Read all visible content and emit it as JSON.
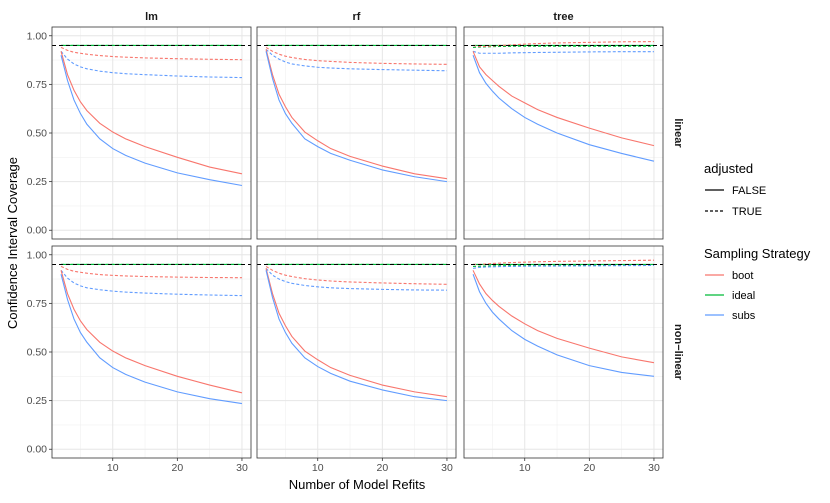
{
  "chart_data": {
    "type": "line",
    "xlabel": "Number of Model Refits",
    "ylabel": "Confidence Interval Coverage",
    "xlim": [
      2,
      30
    ],
    "ylim": [
      0,
      1
    ],
    "x_ticks": [
      10,
      20,
      30
    ],
    "y_ticks": [
      0.0,
      0.25,
      0.5,
      0.75,
      1.0
    ],
    "x_tick_labels": [
      "10",
      "20",
      "30"
    ],
    "y_tick_labels": [
      "0.00",
      "0.25",
      "0.50",
      "0.75",
      "1.00"
    ],
    "reference_line": 0.95,
    "grid": true,
    "legend_position": "right",
    "x": [
      2,
      3,
      4,
      5,
      6,
      8,
      10,
      12,
      15,
      20,
      25,
      30
    ],
    "col_facets": [
      "lm",
      "rf",
      "tree"
    ],
    "row_facets": [
      "linear",
      "non−linear"
    ],
    "legends": {
      "adjusted": {
        "title": "adjusted",
        "entries": [
          {
            "label": "FALSE",
            "linetype": "solid"
          },
          {
            "label": "TRUE",
            "linetype": "dashed"
          }
        ]
      },
      "strategy": {
        "title": "Sampling Strategy",
        "entries": [
          {
            "label": "boot",
            "color": "#F8766D"
          },
          {
            "label": "ideal",
            "color": "#00BA38"
          },
          {
            "label": "subs",
            "color": "#619CFF"
          }
        ]
      }
    },
    "panels": [
      {
        "row": "linear",
        "col": "lm",
        "series": [
          {
            "strategy": "ideal",
            "adjusted": "FALSE",
            "values": [
              0.95,
              0.95,
              0.95,
              0.95,
              0.95,
              0.95,
              0.95,
              0.95,
              0.95,
              0.95,
              0.95,
              0.95
            ]
          },
          {
            "strategy": "ideal",
            "adjusted": "TRUE",
            "values": [
              0.95,
              0.95,
              0.95,
              0.95,
              0.95,
              0.95,
              0.95,
              0.95,
              0.95,
              0.95,
              0.95,
              0.95
            ]
          },
          {
            "strategy": "boot",
            "adjusted": "TRUE",
            "values": [
              0.94,
              0.925,
              0.915,
              0.91,
              0.905,
              0.898,
              0.893,
              0.89,
              0.886,
              0.882,
              0.879,
              0.877
            ]
          },
          {
            "strategy": "subs",
            "adjusted": "TRUE",
            "values": [
              0.92,
              0.88,
              0.855,
              0.84,
              0.83,
              0.818,
              0.81,
              0.805,
              0.8,
              0.793,
              0.788,
              0.785
            ]
          },
          {
            "strategy": "boot",
            "adjusted": "FALSE",
            "values": [
              0.92,
              0.8,
              0.72,
              0.66,
              0.615,
              0.55,
              0.505,
              0.47,
              0.43,
              0.375,
              0.325,
              0.29
            ]
          },
          {
            "strategy": "subs",
            "adjusted": "FALSE",
            "values": [
              0.9,
              0.77,
              0.67,
              0.6,
              0.545,
              0.47,
              0.42,
              0.385,
              0.345,
              0.295,
              0.26,
              0.23
            ]
          }
        ]
      },
      {
        "row": "linear",
        "col": "rf",
        "series": [
          {
            "strategy": "ideal",
            "adjusted": "FALSE",
            "values": [
              0.95,
              0.95,
              0.95,
              0.95,
              0.95,
              0.95,
              0.95,
              0.95,
              0.95,
              0.95,
              0.95,
              0.95
            ]
          },
          {
            "strategy": "ideal",
            "adjusted": "TRUE",
            "values": [
              0.95,
              0.95,
              0.95,
              0.95,
              0.95,
              0.95,
              0.95,
              0.95,
              0.95,
              0.95,
              0.95,
              0.95
            ]
          },
          {
            "strategy": "boot",
            "adjusted": "TRUE",
            "values": [
              0.94,
              0.92,
              0.905,
              0.895,
              0.888,
              0.878,
              0.872,
              0.868,
              0.863,
              0.858,
              0.855,
              0.853
            ]
          },
          {
            "strategy": "subs",
            "adjusted": "TRUE",
            "values": [
              0.93,
              0.9,
              0.88,
              0.865,
              0.855,
              0.845,
              0.838,
              0.834,
              0.83,
              0.826,
              0.823,
              0.82
            ]
          },
          {
            "strategy": "boot",
            "adjusted": "FALSE",
            "values": [
              0.93,
              0.8,
              0.7,
              0.635,
              0.58,
              0.505,
              0.46,
              0.42,
              0.38,
              0.33,
              0.29,
              0.265
            ]
          },
          {
            "strategy": "subs",
            "adjusted": "FALSE",
            "values": [
              0.92,
              0.78,
              0.67,
              0.6,
              0.55,
              0.47,
              0.43,
              0.395,
              0.36,
              0.31,
              0.275,
              0.25
            ]
          }
        ]
      },
      {
        "row": "linear",
        "col": "tree",
        "series": [
          {
            "strategy": "ideal",
            "adjusted": "FALSE",
            "values": [
              0.95,
              0.95,
              0.95,
              0.95,
              0.95,
              0.95,
              0.95,
              0.95,
              0.95,
              0.95,
              0.95,
              0.95
            ]
          },
          {
            "strategy": "ideal",
            "adjusted": "TRUE",
            "values": [
              0.94,
              0.942,
              0.943,
              0.944,
              0.945,
              0.946,
              0.946,
              0.946,
              0.946,
              0.946,
              0.946,
              0.946
            ]
          },
          {
            "strategy": "boot",
            "adjusted": "TRUE",
            "values": [
              0.95,
              0.945,
              0.945,
              0.947,
              0.95,
              0.953,
              0.957,
              0.96,
              0.963,
              0.966,
              0.969,
              0.97
            ]
          },
          {
            "strategy": "subs",
            "adjusted": "TRUE",
            "values": [
              0.92,
              0.91,
              0.91,
              0.91,
              0.91,
              0.912,
              0.913,
              0.914,
              0.915,
              0.917,
              0.918,
              0.918
            ]
          },
          {
            "strategy": "boot",
            "adjusted": "FALSE",
            "values": [
              0.92,
              0.84,
              0.8,
              0.77,
              0.74,
              0.69,
              0.655,
              0.62,
              0.58,
              0.525,
              0.475,
              0.435
            ]
          },
          {
            "strategy": "subs",
            "adjusted": "FALSE",
            "values": [
              0.9,
              0.81,
              0.755,
              0.715,
              0.68,
              0.625,
              0.58,
              0.545,
              0.5,
              0.44,
              0.395,
              0.355
            ]
          }
        ]
      },
      {
        "row": "non−linear",
        "col": "lm",
        "series": [
          {
            "strategy": "ideal",
            "adjusted": "FALSE",
            "values": [
              0.95,
              0.95,
              0.95,
              0.95,
              0.95,
              0.95,
              0.95,
              0.95,
              0.95,
              0.95,
              0.95,
              0.95
            ]
          },
          {
            "strategy": "ideal",
            "adjusted": "TRUE",
            "values": [
              0.95,
              0.95,
              0.95,
              0.95,
              0.95,
              0.95,
              0.95,
              0.95,
              0.95,
              0.95,
              0.95,
              0.95
            ]
          },
          {
            "strategy": "boot",
            "adjusted": "TRUE",
            "values": [
              0.94,
              0.925,
              0.915,
              0.91,
              0.905,
              0.898,
              0.894,
              0.891,
              0.888,
              0.885,
              0.883,
              0.882
            ]
          },
          {
            "strategy": "subs",
            "adjusted": "TRUE",
            "values": [
              0.92,
              0.88,
              0.855,
              0.84,
              0.83,
              0.82,
              0.813,
              0.808,
              0.803,
              0.797,
              0.793,
              0.79
            ]
          },
          {
            "strategy": "boot",
            "adjusted": "FALSE",
            "values": [
              0.92,
              0.8,
              0.72,
              0.66,
              0.615,
              0.55,
              0.505,
              0.47,
              0.43,
              0.375,
              0.33,
              0.29
            ]
          },
          {
            "strategy": "subs",
            "adjusted": "FALSE",
            "values": [
              0.9,
              0.77,
              0.67,
              0.6,
              0.55,
              0.47,
              0.42,
              0.385,
              0.345,
              0.295,
              0.26,
              0.235
            ]
          }
        ]
      },
      {
        "row": "non−linear",
        "col": "rf",
        "series": [
          {
            "strategy": "ideal",
            "adjusted": "FALSE",
            "values": [
              0.95,
              0.95,
              0.95,
              0.95,
              0.95,
              0.95,
              0.95,
              0.95,
              0.95,
              0.95,
              0.95,
              0.95
            ]
          },
          {
            "strategy": "ideal",
            "adjusted": "TRUE",
            "values": [
              0.95,
              0.95,
              0.95,
              0.95,
              0.95,
              0.95,
              0.95,
              0.95,
              0.95,
              0.95,
              0.95,
              0.95
            ]
          },
          {
            "strategy": "boot",
            "adjusted": "TRUE",
            "values": [
              0.94,
              0.92,
              0.905,
              0.895,
              0.888,
              0.877,
              0.87,
              0.865,
              0.86,
              0.855,
              0.851,
              0.848
            ]
          },
          {
            "strategy": "subs",
            "adjusted": "TRUE",
            "values": [
              0.93,
              0.895,
              0.875,
              0.862,
              0.853,
              0.842,
              0.835,
              0.83,
              0.826,
              0.822,
              0.819,
              0.818
            ]
          },
          {
            "strategy": "boot",
            "adjusted": "FALSE",
            "values": [
              0.93,
              0.8,
              0.7,
              0.635,
              0.58,
              0.505,
              0.46,
              0.42,
              0.38,
              0.33,
              0.295,
              0.27
            ]
          },
          {
            "strategy": "subs",
            "adjusted": "FALSE",
            "values": [
              0.92,
              0.78,
              0.67,
              0.6,
              0.545,
              0.47,
              0.425,
              0.39,
              0.35,
              0.305,
              0.27,
              0.25
            ]
          }
        ]
      },
      {
        "row": "non−linear",
        "col": "tree",
        "series": [
          {
            "strategy": "ideal",
            "adjusted": "FALSE",
            "values": [
              0.95,
              0.95,
              0.95,
              0.95,
              0.95,
              0.95,
              0.95,
              0.95,
              0.95,
              0.95,
              0.95,
              0.95
            ]
          },
          {
            "strategy": "ideal",
            "adjusted": "TRUE",
            "values": [
              0.94,
              0.941,
              0.942,
              0.943,
              0.943,
              0.944,
              0.944,
              0.944,
              0.944,
              0.945,
              0.945,
              0.945
            ]
          },
          {
            "strategy": "boot",
            "adjusted": "TRUE",
            "values": [
              0.95,
              0.95,
              0.953,
              0.955,
              0.957,
              0.96,
              0.962,
              0.964,
              0.966,
              0.968,
              0.97,
              0.972
            ]
          },
          {
            "strategy": "subs",
            "adjusted": "TRUE",
            "values": [
              0.93,
              0.935,
              0.937,
              0.938,
              0.939,
              0.94,
              0.941,
              0.942,
              0.942,
              0.943,
              0.944,
              0.945
            ]
          },
          {
            "strategy": "boot",
            "adjusted": "FALSE",
            "values": [
              0.92,
              0.85,
              0.8,
              0.765,
              0.735,
              0.685,
              0.645,
              0.61,
              0.57,
              0.52,
              0.475,
              0.445
            ]
          },
          {
            "strategy": "subs",
            "adjusted": "FALSE",
            "values": [
              0.9,
              0.81,
              0.75,
              0.705,
              0.67,
              0.61,
              0.565,
              0.53,
              0.485,
              0.43,
              0.395,
              0.375
            ]
          }
        ]
      }
    ]
  }
}
